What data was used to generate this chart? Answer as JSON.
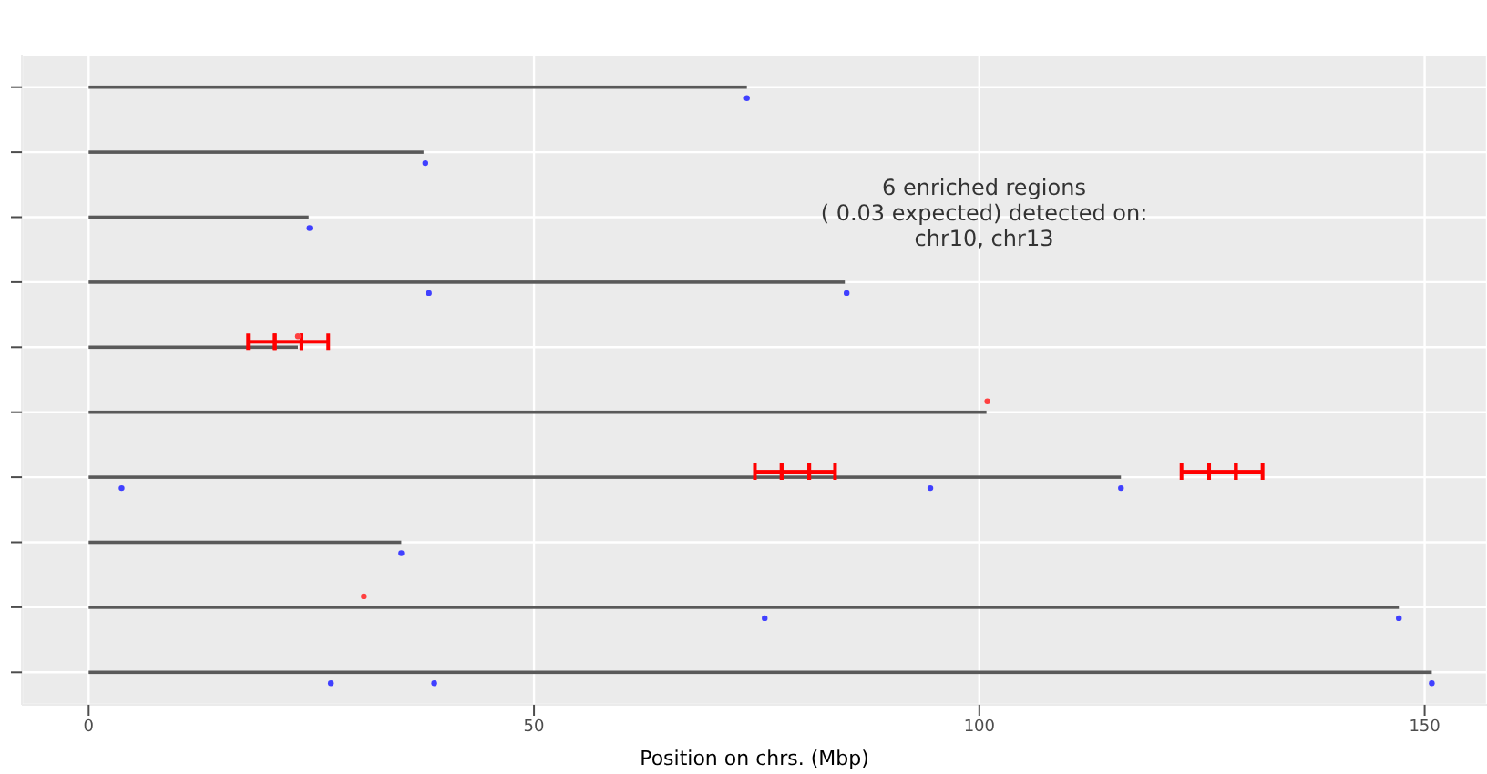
{
  "chart_data": {
    "type": "bar",
    "orientation": "horizontal",
    "xlabel": "Position on chrs. (Mbp)",
    "annotations": [
      "6  enriched regions\n( 0.03  expected) detected on:\nchr10, chr13"
    ],
    "categories": [
      null,
      null,
      null,
      null,
      null,
      null,
      null,
      null,
      null,
      null
    ],
    "xlim": [
      -7.5,
      157
    ],
    "xticks": [
      0,
      50,
      100,
      150
    ],
    "grid": true,
    "series": [
      {
        "type": "bar",
        "color": "#595959",
        "values": [
          73.9,
          37.6,
          24.7,
          84.9,
          23.5,
          100.8,
          115.9,
          35.1,
          147.1,
          150.8
        ]
      },
      {
        "type": "bar",
        "color": "#ff0000",
        "base": [
          null,
          null,
          null,
          null,
          17.9,
          null,
          74.8,
          null,
          null,
          null
        ],
        "values": [
          null,
          null,
          null,
          null,
          3.0,
          null,
          3.0,
          null,
          null,
          null
        ]
      },
      {
        "type": "bar",
        "color": "#ff0000",
        "base": [
          null,
          null,
          null,
          null,
          20.9,
          null,
          77.8,
          null,
          null,
          null
        ],
        "values": [
          null,
          null,
          null,
          null,
          3.0,
          null,
          3.1,
          null,
          null,
          null
        ]
      },
      {
        "type": "bar",
        "color": "#ff0000",
        "base": [
          null,
          null,
          null,
          null,
          23.9,
          null,
          80.9,
          null,
          null,
          null
        ],
        "values": [
          null,
          null,
          null,
          null,
          3.0,
          null,
          2.9,
          null,
          null,
          null
        ]
      },
      {
        "type": "bar",
        "color": "#ff0000",
        "base": [
          null,
          null,
          null,
          null,
          null,
          null,
          122.7,
          null,
          null,
          null
        ],
        "values": [
          null,
          null,
          null,
          null,
          null,
          null,
          3.1,
          null,
          null,
          null
        ]
      },
      {
        "type": "bar",
        "color": "#ff0000",
        "base": [
          null,
          null,
          null,
          null,
          null,
          null,
          125.8,
          null,
          null,
          null
        ],
        "values": [
          null,
          null,
          null,
          null,
          null,
          null,
          3.0,
          null,
          null,
          null
        ]
      },
      {
        "type": "bar",
        "color": "#ff0000",
        "base": [
          null,
          null,
          null,
          null,
          null,
          null,
          128.8,
          null,
          null,
          null
        ],
        "values": [
          null,
          null,
          null,
          null,
          null,
          null,
          3.0,
          null,
          null,
          null
        ]
      },
      {
        "type": "scatter",
        "color": "#4040ff",
        "marker": "circle",
        "values": [
          73.9,
          37.8,
          24.8,
          38.2,
          null,
          null,
          3.7,
          35.1,
          75.9,
          27.2
        ]
      },
      {
        "type": "scatter",
        "color": "#4040ff",
        "marker": "circle",
        "values": [
          null,
          null,
          null,
          85.1,
          null,
          null,
          94.5,
          null,
          147.1,
          38.8
        ]
      },
      {
        "type": "scatter",
        "color": "#4040ff",
        "marker": "circle",
        "values": [
          null,
          null,
          null,
          null,
          null,
          null,
          115.9,
          null,
          null,
          150.8
        ]
      },
      {
        "type": "scatter",
        "color": "#ff4040",
        "marker": "circle",
        "values": [
          null,
          null,
          null,
          null,
          23.5,
          100.9,
          null,
          null,
          30.9,
          null
        ]
      }
    ]
  }
}
